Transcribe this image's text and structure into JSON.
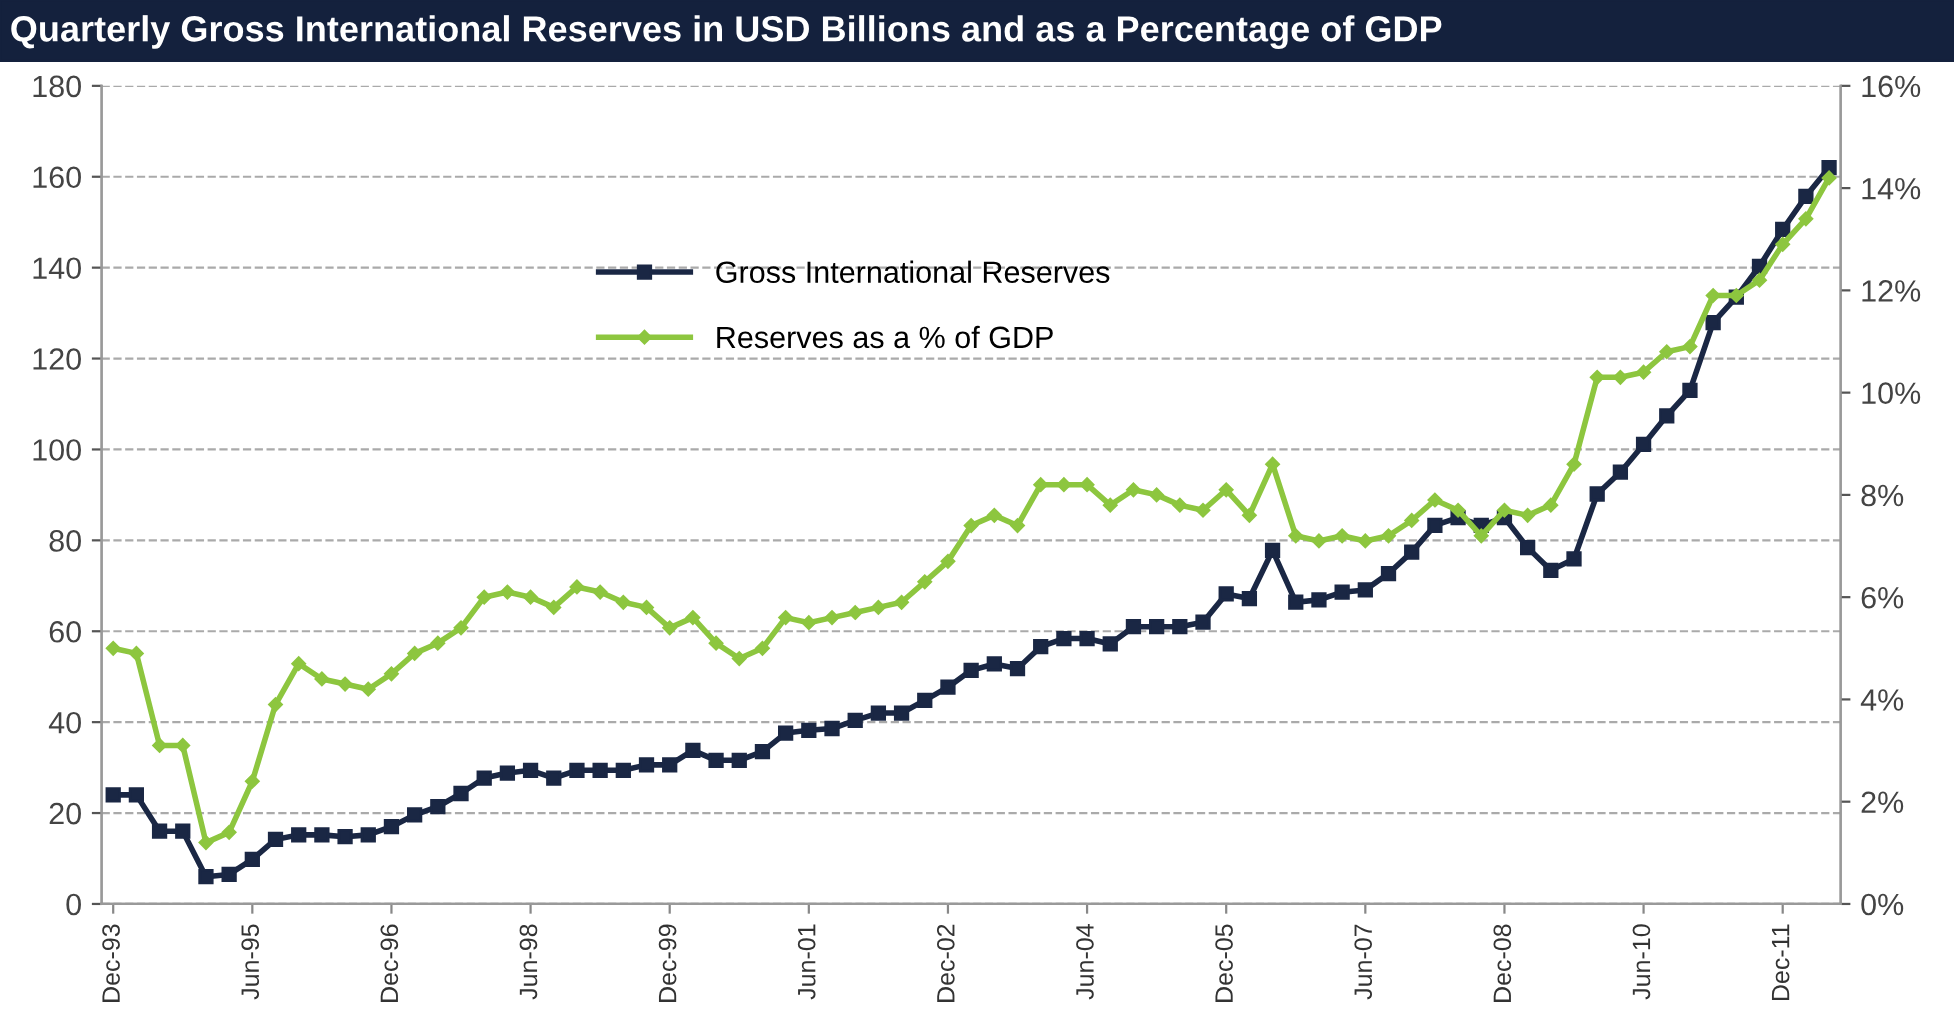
{
  "chart_data": {
    "type": "line",
    "title": "Quarterly Gross International Reserves in USD Billions and as a Percentage of GDP",
    "categories": [
      "Dec-93",
      null,
      null,
      null,
      null,
      null,
      "Jun-95",
      null,
      null,
      null,
      null,
      null,
      "Dec-96",
      null,
      null,
      null,
      null,
      null,
      "Jun-98",
      null,
      null,
      null,
      null,
      null,
      "Dec-99",
      null,
      null,
      null,
      null,
      null,
      "Jun-01",
      null,
      null,
      null,
      null,
      null,
      "Dec-02",
      null,
      null,
      null,
      null,
      null,
      "Jun-04",
      null,
      null,
      null,
      null,
      null,
      "Dec-05",
      null,
      null,
      null,
      null,
      null,
      "Jun-07",
      null,
      null,
      null,
      null,
      null,
      "Dec-08",
      null,
      null,
      null,
      null,
      null,
      "Jun-10",
      null,
      null,
      null,
      null,
      null,
      "Dec-11",
      null,
      null
    ],
    "series": [
      {
        "name": "Gross International Reserves",
        "color": "#1a2744",
        "marker": "square",
        "values": [
          24,
          24,
          16,
          16,
          6,
          6.5,
          9.8,
          14.2,
          15.2,
          15.2,
          14.8,
          15.2,
          17,
          19.6,
          21.4,
          24.3,
          27.7,
          28.8,
          29.4,
          27.7,
          29.4,
          29.4,
          29.4,
          30.6,
          30.6,
          33.8,
          31.6,
          31.6,
          33.5,
          37.6,
          38.2,
          38.6,
          40.4,
          42,
          42,
          44.8,
          47.7,
          51.4,
          52.8,
          51.8,
          56.6,
          58.4,
          58.4,
          57.2,
          61,
          61,
          61,
          62,
          68.2,
          67.2,
          77.8,
          66.4,
          66.9,
          68.6,
          69.1,
          72.7,
          77.4,
          83.3,
          85,
          83.3,
          85,
          78.4,
          73.4,
          75.9,
          90.2,
          95,
          101.1,
          107.4,
          113,
          127.9,
          133.5,
          140.3,
          148.4,
          155.7,
          162
        ]
      },
      {
        "name": "Reserves as a % of GDP",
        "color": "#8dc63f",
        "marker": "diamond",
        "axis": "y2",
        "values": [
          5.0,
          4.9,
          3.1,
          3.1,
          1.2,
          1.4,
          2.4,
          3.9,
          4.7,
          4.4,
          4.3,
          4.2,
          4.5,
          4.9,
          5.1,
          5.4,
          6.0,
          6.1,
          6.0,
          5.8,
          6.2,
          6.1,
          5.9,
          5.8,
          5.4,
          5.6,
          5.1,
          4.8,
          5.0,
          5.6,
          5.5,
          5.6,
          5.7,
          5.8,
          5.9,
          6.3,
          6.7,
          7.4,
          7.6,
          7.4,
          8.2,
          8.2,
          8.2,
          7.8,
          8.1,
          8.0,
          7.8,
          7.7,
          8.1,
          7.6,
          8.6,
          7.2,
          7.1,
          7.2,
          7.1,
          7.2,
          7.5,
          7.9,
          7.7,
          7.2,
          7.7,
          7.6,
          7.8,
          8.6,
          10.3,
          10.3,
          10.4,
          10.8,
          10.9,
          11.9,
          11.9,
          12.2,
          12.9,
          13.4,
          14.2
        ]
      }
    ],
    "ylim": [
      0,
      180
    ],
    "yticks": [
      0,
      20,
      40,
      60,
      80,
      100,
      120,
      140,
      160,
      180
    ],
    "y2lim": [
      0,
      16
    ],
    "y2ticks": [
      {
        "value": 0,
        "label": "0%"
      },
      {
        "value": 2,
        "label": "2%"
      },
      {
        "value": 4,
        "label": "4%"
      },
      {
        "value": 6,
        "label": "6%"
      },
      {
        "value": 8,
        "label": "8%"
      },
      {
        "value": 10,
        "label": "10%"
      },
      {
        "value": 12,
        "label": "12%"
      },
      {
        "value": 14,
        "label": "14%"
      },
      {
        "value": 16,
        "label": "16%"
      }
    ],
    "grid": "y",
    "legend": "top left",
    "line_style": "solid"
  }
}
